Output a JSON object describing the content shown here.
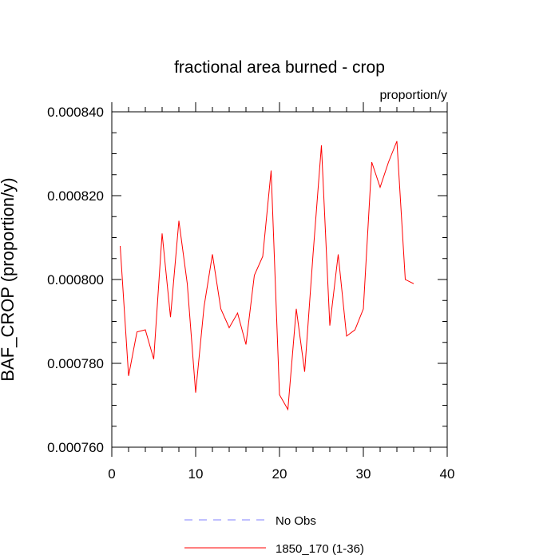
{
  "chart_data": {
    "type": "line",
    "title": "fractional area burned - crop",
    "units_label": "proportion/y",
    "ylabel": "BAF_CROP  (proportion/y)",
    "xlabel": "",
    "xlim": [
      0,
      40
    ],
    "ylim": [
      0.00076,
      0.00084
    ],
    "x_ticks": [
      0,
      10,
      20,
      30,
      40
    ],
    "x_tick_labels": [
      "0",
      "10",
      "20",
      "30",
      "40"
    ],
    "y_ticks": [
      0.00076,
      0.00078,
      0.0008,
      0.00082,
      0.00084
    ],
    "y_tick_labels": [
      "0.000760",
      "0.000780",
      "0.000800",
      "0.000820",
      "0.000840"
    ],
    "grid": false,
    "legend_position": "bottom",
    "series": [
      {
        "name": "No Obs",
        "color": "#8080ff",
        "dash": "dashed",
        "x": [],
        "values": []
      },
      {
        "name": "1850_170 (1-36)",
        "color": "#ff0000",
        "dash": "solid",
        "x": [
          1,
          2,
          3,
          4,
          5,
          6,
          7,
          8,
          9,
          10,
          11,
          12,
          13,
          14,
          15,
          16,
          17,
          18,
          19,
          20,
          21,
          22,
          23,
          24,
          25,
          26,
          27,
          28,
          29,
          30,
          31,
          32,
          33,
          34,
          35,
          36
        ],
        "values": [
          0.000808,
          0.000777,
          0.0007875,
          0.000788,
          0.000781,
          0.000811,
          0.000791,
          0.000814,
          0.000799,
          0.000773,
          0.0007935,
          0.000806,
          0.000793,
          0.0007885,
          0.000792,
          0.0007845,
          0.000801,
          0.0008055,
          0.000826,
          0.0007725,
          0.000769,
          0.000793,
          0.000778,
          0.000806,
          0.000832,
          0.000789,
          0.000806,
          0.0007865,
          0.000788,
          0.000793,
          0.000828,
          0.000822,
          0.000828,
          0.000833,
          0.0008,
          0.000799
        ]
      }
    ]
  }
}
